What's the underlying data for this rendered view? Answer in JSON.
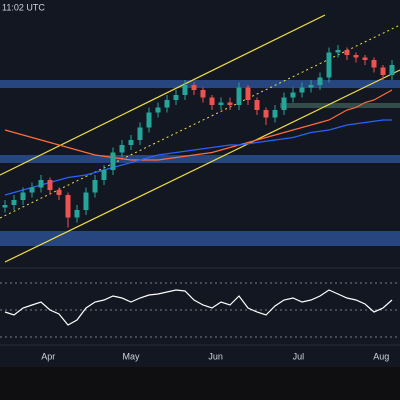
{
  "header": {
    "time": "11:02 UTC"
  },
  "chart_data": [
    {
      "type": "candlestick",
      "categories": [
        null,
        null,
        null,
        null,
        null,
        null,
        null,
        null,
        null,
        null,
        null,
        null,
        null,
        null,
        null,
        null,
        null,
        null,
        null,
        null,
        null,
        null,
        null,
        null,
        null,
        null,
        null,
        null,
        null,
        null,
        null,
        null,
        null,
        null,
        null,
        null,
        null,
        null,
        null,
        null,
        null,
        null,
        null,
        null
      ],
      "open": [
        23,
        24,
        26,
        29,
        31,
        34,
        30,
        28,
        19,
        22,
        29,
        34,
        38,
        45,
        48,
        50,
        55,
        61,
        63,
        66,
        68,
        72,
        70,
        67,
        64,
        65,
        64,
        71,
        66,
        62,
        59,
        62,
        67,
        69,
        71,
        72,
        75,
        85,
        86,
        84,
        83,
        82,
        79,
        76
      ],
      "close": [
        24,
        26,
        29,
        31,
        34,
        30,
        28,
        19,
        22,
        29,
        34,
        38,
        45,
        48,
        50,
        55,
        61,
        63,
        66,
        68,
        72,
        70,
        67,
        64,
        65,
        64,
        71,
        66,
        62,
        59,
        62,
        67,
        69,
        71,
        72,
        75,
        85,
        86,
        84,
        83,
        82,
        79,
        76,
        80
      ],
      "high": [
        26,
        28,
        31,
        33,
        36,
        35,
        31,
        29,
        24,
        31,
        36,
        40,
        47,
        50,
        52,
        57,
        63,
        65,
        68,
        70,
        74,
        73,
        71,
        68,
        67,
        67,
        73,
        72,
        67,
        63,
        64,
        69,
        71,
        73,
        74,
        77,
        87,
        88,
        87,
        85,
        84,
        83,
        80,
        82
      ],
      "low": [
        21,
        22,
        24,
        27,
        29,
        28,
        26,
        15,
        17,
        20,
        27,
        32,
        36,
        43,
        46,
        48,
        53,
        59,
        61,
        64,
        66,
        68,
        65,
        62,
        62,
        62,
        62,
        64,
        60,
        56,
        57,
        60,
        65,
        67,
        69,
        70,
        73,
        83,
        82,
        81,
        80,
        77,
        74,
        74
      ],
      "series": [
        {
          "name": null,
          "color": "#ff6d3a",
          "values": [
            54,
            53,
            52,
            51,
            50,
            49,
            48,
            47,
            46,
            45,
            44,
            43.5,
            43,
            42.5,
            42,
            42,
            42,
            42,
            42.5,
            43,
            43.5,
            44,
            44.5,
            45,
            46,
            47,
            48,
            49,
            50,
            51,
            52,
            53,
            54,
            55,
            56,
            57,
            58,
            60,
            62,
            63,
            65,
            66,
            68,
            70
          ]
        },
        {
          "name": null,
          "color": "#2962ff",
          "values": [
            28,
            29,
            30,
            31,
            32,
            33,
            34,
            35,
            35.5,
            36,
            37,
            38,
            39,
            40,
            41,
            42,
            43,
            44,
            44.5,
            45,
            45.5,
            46,
            46.5,
            47,
            47.5,
            48,
            48,
            48.5,
            49,
            49.5,
            50,
            50.5,
            51,
            52,
            53,
            53.5,
            54,
            55,
            56,
            56.5,
            57,
            57.5,
            58,
            58
          ]
        }
      ],
      "ylim": [
        0,
        100
      ],
      "xticks": [
        {
          "value": 4.8,
          "label": "Apr"
        },
        {
          "value": 14,
          "label": "May"
        },
        {
          "value": 23.4,
          "label": "Jun"
        },
        {
          "value": 32.6,
          "label": "Jul"
        },
        {
          "value": 41.8,
          "label": "Aug"
        }
      ]
    },
    {
      "type": "line",
      "series": [
        {
          "name": null,
          "color": "#ffffff",
          "values": [
            48,
            45,
            52,
            55,
            58,
            50,
            46,
            35,
            40,
            52,
            58,
            60,
            64,
            62,
            58,
            62,
            65,
            66,
            68,
            70,
            69,
            60,
            55,
            52,
            58,
            55,
            64,
            52,
            48,
            45,
            54,
            60,
            62,
            58,
            60,
            64,
            70,
            66,
            62,
            60,
            56,
            48,
            52,
            60
          ]
        }
      ],
      "ylim": [
        0,
        100
      ]
    }
  ]
}
